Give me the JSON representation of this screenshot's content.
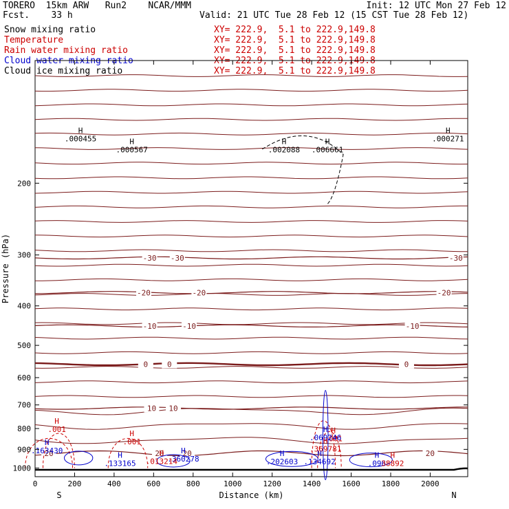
{
  "header": {
    "model": "TORERO",
    "resolution": "15km ARW",
    "run": "Run2",
    "org": "NCAR/MMM",
    "fcst_label": "Fcst.",
    "fcst_value": "33 h",
    "init": "Init: 12 UTC Mon 27 Feb 12",
    "valid": "Valid: 21 UTC Tue 28 Feb 12 (15 CST Tue 28 Feb 12)"
  },
  "legend": [
    {
      "name": "Snow mixing ratio",
      "xy": "XY= 222.9,  5.1 to 222.9,149.8",
      "color": "#000000"
    },
    {
      "name": "Temperature",
      "xy": "XY= 222.9,  5.1 to 222.9,149.8",
      "color": "#cc0000"
    },
    {
      "name": "Rain water mixing ratio",
      "xy": "XY= 222.9,  5.1 to 222.9,149.8",
      "color": "#cc0000"
    },
    {
      "name": "Cloud water mixing ratio",
      "xy": "XY= 222.9,  5.1 to 222.9,149.8",
      "color": "#0000cc"
    },
    {
      "name": "Cloud ice mixing ratio",
      "xy": "XY= 222.9,  5.1 to 222.9,149.8",
      "color": "#000000"
    }
  ],
  "chart_data": {
    "type": "cross-section",
    "xlabel": "Distance (km)",
    "ylabel": "Pressure (hPa)",
    "x_range": [
      0,
      2190
    ],
    "y_range_hpa": [
      1050,
      100
    ],
    "x_ticks": [
      "0",
      "200",
      "400",
      "600",
      "800",
      "1000",
      "1200",
      "1400",
      "1600",
      "1800",
      "2000"
    ],
    "y_ticks": [
      "200",
      "300",
      "400",
      "500",
      "600",
      "700",
      "800",
      "900",
      "1000"
    ],
    "x_end_labels": {
      "left": "S",
      "right": "N"
    },
    "temperature_isotherms": [
      {
        "level": -30,
        "p_hpa": 305,
        "labels": [
          {
            "text": "-30",
            "x_km": 580
          },
          {
            "text": "-30",
            "x_km": 720
          },
          {
            "text": "-30",
            "x_km": 2130
          }
        ]
      },
      {
        "level": -20,
        "p_hpa": 371,
        "labels": [
          {
            "text": "-20",
            "x_km": 550
          },
          {
            "text": "-20",
            "x_km": 830
          },
          {
            "text": "-20",
            "x_km": 2070
          }
        ]
      },
      {
        "level": -10,
        "p_hpa": 448,
        "labels": [
          {
            "text": "-10",
            "x_km": 580
          },
          {
            "text": "-10",
            "x_km": 780
          },
          {
            "text": "-10",
            "x_km": 1910
          }
        ]
      },
      {
        "level": 0,
        "p_hpa": 556,
        "labels": [
          {
            "text": "0",
            "x_km": 560
          },
          {
            "text": "0",
            "x_km": 680
          },
          {
            "text": "0",
            "x_km": 1880
          }
        ]
      },
      {
        "level": 10,
        "p_hpa": 713,
        "labels": [
          {
            "text": "10",
            "x_km": 590
          },
          {
            "text": "10",
            "x_km": 700
          }
        ]
      },
      {
        "level": 20,
        "p_hpa": 920,
        "labels": [
          {
            "text": "20",
            "x_km": 630
          },
          {
            "text": "20",
            "x_km": 770
          },
          {
            "text": "20",
            "x_km": 2000
          },
          {
            "text": "20",
            "x_km": 70
          }
        ]
      }
    ],
    "high_labels": [
      {
        "text": ".000455",
        "x_km": 230,
        "p_hpa": 158,
        "color": "#000000"
      },
      {
        "text": ".000567",
        "x_km": 490,
        "p_hpa": 168,
        "color": "#000000"
      },
      {
        "text": ".002088",
        "x_km": 1260,
        "p_hpa": 168,
        "color": "#000000"
      },
      {
        "text": ".006661",
        "x_km": 1480,
        "p_hpa": 168,
        "color": "#000000"
      },
      {
        "text": ".000271",
        "x_km": 2090,
        "p_hpa": 158,
        "color": "#000000"
      },
      {
        "text": ".001",
        "x_km": 110,
        "p_hpa": 815,
        "color": "#cc0000"
      },
      {
        "text": ".001",
        "x_km": 490,
        "p_hpa": 874,
        "color": "#cc0000"
      },
      {
        "text": ".001",
        "x_km": 1510,
        "p_hpa": 860,
        "color": "#cc0000"
      },
      {
        "text": ".069246",
        "x_km": 1470,
        "p_hpa": 855,
        "color": "#0000cc"
      },
      {
        "text": ".369781",
        "x_km": 1470,
        "p_hpa": 912,
        "color": "#cc0000"
      },
      {
        "text": ".163430",
        "x_km": 60,
        "p_hpa": 920,
        "color": "#0000cc"
      },
      {
        "text": ".360278",
        "x_km": 750,
        "p_hpa": 964,
        "color": "#0000cc"
      },
      {
        "text": ".133165",
        "x_km": 430,
        "p_hpa": 988,
        "color": "#0000cc"
      },
      {
        "text": ".013214",
        "x_km": 640,
        "p_hpa": 978,
        "color": "#cc0000"
      },
      {
        "text": ".202603",
        "x_km": 1250,
        "p_hpa": 980,
        "color": "#0000cc"
      },
      {
        "text": ".134692",
        "x_km": 1440,
        "p_hpa": 980,
        "color": "#0000cc"
      },
      {
        "text": ".096",
        "x_km": 1730,
        "p_hpa": 988,
        "color": "#0000cc"
      },
      {
        "text": "38892",
        "x_km": 1810,
        "p_hpa": 988,
        "color": "#cc0000"
      }
    ]
  }
}
